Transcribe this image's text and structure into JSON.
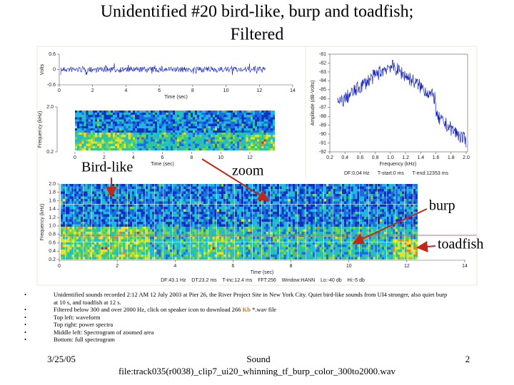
{
  "title": [
    "Unidentified #20 bird-like, burp and toadfish;",
    "Filtered"
  ],
  "waveform": {
    "y_label": "Volts",
    "x_label": "Time (sec)",
    "yticks": [
      "0.6",
      "0",
      "-0.6"
    ],
    "xticks": [
      "0",
      "2",
      "4",
      "6",
      "8",
      "10",
      "12",
      "14"
    ]
  },
  "zoom_spectrogram": {
    "y_label": "Frequency (kHz)",
    "x_label": "Time (sec)",
    "yticks": [
      "2.0",
      "0.2"
    ],
    "xticks": [
      "0",
      "2",
      "4",
      "6",
      "8",
      "10",
      "12"
    ]
  },
  "power_spectrum": {
    "y_label": "Amplitude (dB-Volts)",
    "x_label": "Frequency (kHz)",
    "yticks": [
      "-81",
      "-82",
      "-83",
      "-84",
      "-85",
      "-86",
      "-87",
      "-88",
      "-89",
      "-90",
      "-91",
      "-92"
    ],
    "xticks": [
      "0.2",
      "0.4",
      "0.6",
      "0.8",
      "1.0",
      "1.2",
      "1.4",
      "1.6",
      "1.8",
      "2.0"
    ],
    "footer": "DF:0.04 Hz      T-start:0 ms      T-end:12353 ms"
  },
  "full_spectrogram": {
    "y_label": "Frequency (kHz)",
    "x_label": "Time (sec)",
    "yticks": [
      "2.0",
      "1.8",
      "1.6",
      "1.4",
      "1.2",
      "1.0",
      "0.8",
      "0.6",
      "0.4",
      "0.2"
    ],
    "xticks": [
      "0",
      "2",
      "4",
      "6",
      "8",
      "10",
      "12",
      "14"
    ],
    "footer": "DF:43.1 Hz    DT:23.2 ms    T-inc:12.4 ms    FFT:256    Window:HANN    Lo:-40 db    Hi:-5 db"
  },
  "annotations": {
    "bird_like": "Bird-like",
    "zoom": "zoom",
    "burp": "burp",
    "toadfish": "toadfish"
  },
  "bullets": [
    {
      "text": "Unidentified sounds recorded 2:12 AM 12 July 2003 at Pier 26, the River Project Site in New York City.  Quiet bird-like sounds from UI4 stronger, also quiet burp at 10 s, and toadfish at 12 s."
    },
    {
      "text": "Filtered below 300 and over 2000 Hz, click on speaker icon to download 266 ",
      "highlight": "Kb",
      "rest": " *.wav file"
    },
    {
      "text": "Top left: waveform"
    },
    {
      "text": "Top right: power spectra"
    },
    {
      "text": "Middle left: Spectrogram of zoomed area"
    },
    {
      "text": "Bottom: full spectrogram"
    }
  ],
  "footer": {
    "date": "3/25/05",
    "center": [
      "Sound",
      "file:track035(r0038)_clip7_ui20_whinning_tf_burp_color_300to2000.wav"
    ],
    "page": "2"
  }
}
